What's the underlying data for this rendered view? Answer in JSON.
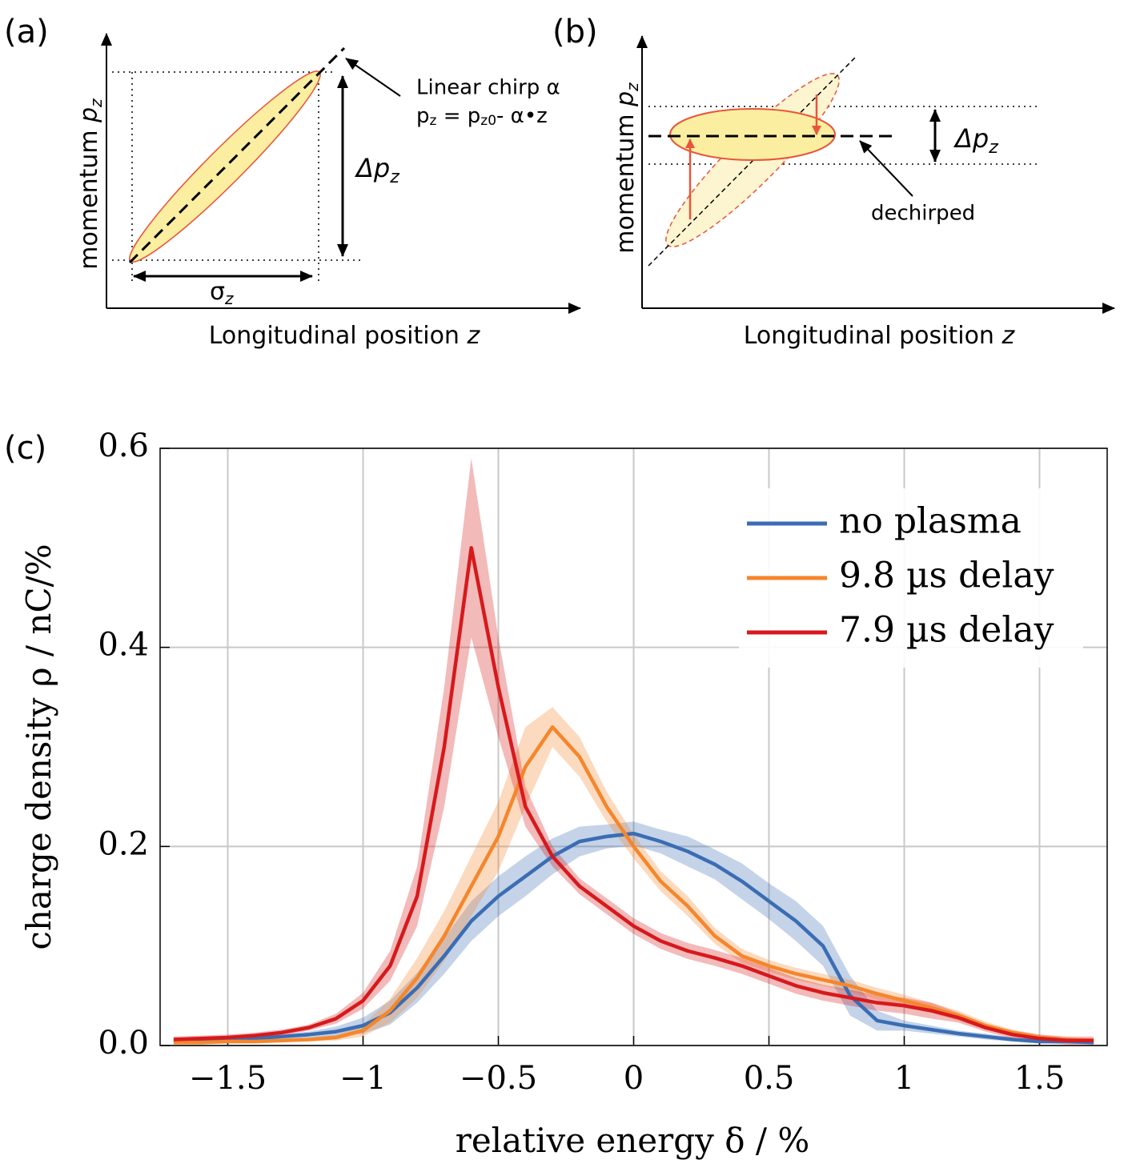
{
  "diagram_a": {
    "label": "(a)",
    "y_axis": {
      "text": "momentum",
      "symbol": "p",
      "subscript": "z"
    },
    "x_axis": {
      "text": "Longitudinal position",
      "symbol": "z"
    },
    "annotation": {
      "line1": "Linear chirp α",
      "line2": {
        "p": "p",
        "p_sub": "z",
        "mid": " = p",
        "mid_sub": "z0",
        "end": "- α•z"
      }
    },
    "spread": {
      "symbol": "Δp",
      "subscript": "z"
    },
    "length": {
      "symbol": "σ",
      "subscript": "z"
    }
  },
  "diagram_b": {
    "label": "(b)",
    "y_axis": {
      "text": "momentum",
      "symbol": "p",
      "subscript": "z"
    },
    "x_axis": {
      "text": "Longitudinal position",
      "symbol": "z"
    },
    "spread": {
      "symbol": "Δp",
      "subscript": "z"
    },
    "annotation": "dechirped"
  },
  "chart_data": {
    "type": "line",
    "label": "(c)",
    "x_label": "relative energy δ / %",
    "y_label": "charge density ρ / nC/%",
    "x": [
      -1.7,
      -1.6,
      -1.5,
      -1.4,
      -1.3,
      -1.2,
      -1.1,
      -1.0,
      -0.9,
      -0.8,
      -0.7,
      -0.6,
      -0.5,
      -0.4,
      -0.3,
      -0.2,
      -0.1,
      0.0,
      0.1,
      0.2,
      0.3,
      0.4,
      0.5,
      0.6,
      0.7,
      0.8,
      0.9,
      1.0,
      1.1,
      1.2,
      1.3,
      1.4,
      1.5,
      1.6,
      1.7
    ],
    "series": [
      {
        "name": "no plasma",
        "color": "#3a6db3",
        "values": [
          0.005,
          0.005,
          0.006,
          0.007,
          0.009,
          0.011,
          0.014,
          0.02,
          0.033,
          0.058,
          0.09,
          0.125,
          0.15,
          0.17,
          0.19,
          0.205,
          0.21,
          0.213,
          0.205,
          0.195,
          0.182,
          0.165,
          0.145,
          0.125,
          0.1,
          0.05,
          0.025,
          0.02,
          0.016,
          0.012,
          0.009,
          0.006,
          0.004,
          0.004,
          0.003
        ],
        "errors": [
          0.002,
          0.002,
          0.002,
          0.002,
          0.002,
          0.003,
          0.005,
          0.008,
          0.012,
          0.015,
          0.018,
          0.02,
          0.02,
          0.02,
          0.018,
          0.015,
          0.012,
          0.012,
          0.012,
          0.015,
          0.015,
          0.018,
          0.018,
          0.02,
          0.02,
          0.02,
          0.01,
          0.005,
          0.004,
          0.003,
          0.003,
          0.002,
          0.002,
          0.002,
          0.002
        ]
      },
      {
        "name": "9.8 µs delay",
        "color": "#f5862b",
        "values": [
          0.003,
          0.003,
          0.004,
          0.004,
          0.005,
          0.006,
          0.008,
          0.015,
          0.035,
          0.068,
          0.11,
          0.16,
          0.21,
          0.28,
          0.32,
          0.29,
          0.24,
          0.2,
          0.165,
          0.14,
          0.11,
          0.09,
          0.08,
          0.072,
          0.066,
          0.06,
          0.052,
          0.045,
          0.038,
          0.03,
          0.02,
          0.013,
          0.008,
          0.006,
          0.005
        ],
        "errors": [
          0.002,
          0.002,
          0.002,
          0.002,
          0.002,
          0.002,
          0.003,
          0.006,
          0.012,
          0.02,
          0.025,
          0.03,
          0.035,
          0.04,
          0.02,
          0.02,
          0.015,
          0.012,
          0.01,
          0.01,
          0.008,
          0.007,
          0.006,
          0.006,
          0.006,
          0.006,
          0.006,
          0.006,
          0.005,
          0.005,
          0.004,
          0.003,
          0.003,
          0.002,
          0.002
        ]
      },
      {
        "name": "7.9 µs delay",
        "color": "#d7191c",
        "values": [
          0.006,
          0.007,
          0.008,
          0.01,
          0.013,
          0.018,
          0.027,
          0.045,
          0.08,
          0.15,
          0.3,
          0.5,
          0.36,
          0.24,
          0.19,
          0.16,
          0.14,
          0.12,
          0.105,
          0.095,
          0.088,
          0.08,
          0.07,
          0.06,
          0.053,
          0.048,
          0.043,
          0.04,
          0.035,
          0.028,
          0.018,
          0.011,
          0.007,
          0.005,
          0.005
        ],
        "errors": [
          0.003,
          0.003,
          0.003,
          0.003,
          0.003,
          0.003,
          0.005,
          0.008,
          0.015,
          0.03,
          0.06,
          0.09,
          0.05,
          0.02,
          0.01,
          0.008,
          0.008,
          0.008,
          0.008,
          0.008,
          0.008,
          0.008,
          0.008,
          0.008,
          0.008,
          0.008,
          0.008,
          0.008,
          0.008,
          0.005,
          0.004,
          0.004,
          0.004,
          0.004,
          0.004
        ]
      }
    ],
    "xlim": [
      -1.75,
      1.75
    ],
    "xticks": [
      {
        "value": -1.5,
        "label": "−1.5"
      },
      {
        "value": -1,
        "label": "−1"
      },
      {
        "value": -0.5,
        "label": "−0.5"
      },
      0,
      0.5,
      1,
      1.5
    ],
    "ylim": [
      0,
      0.6
    ],
    "yticks": [
      {
        "value": 0,
        "label": "0.0"
      },
      0.2,
      0.4,
      0.6
    ],
    "grid": true,
    "legend": "top-right"
  }
}
